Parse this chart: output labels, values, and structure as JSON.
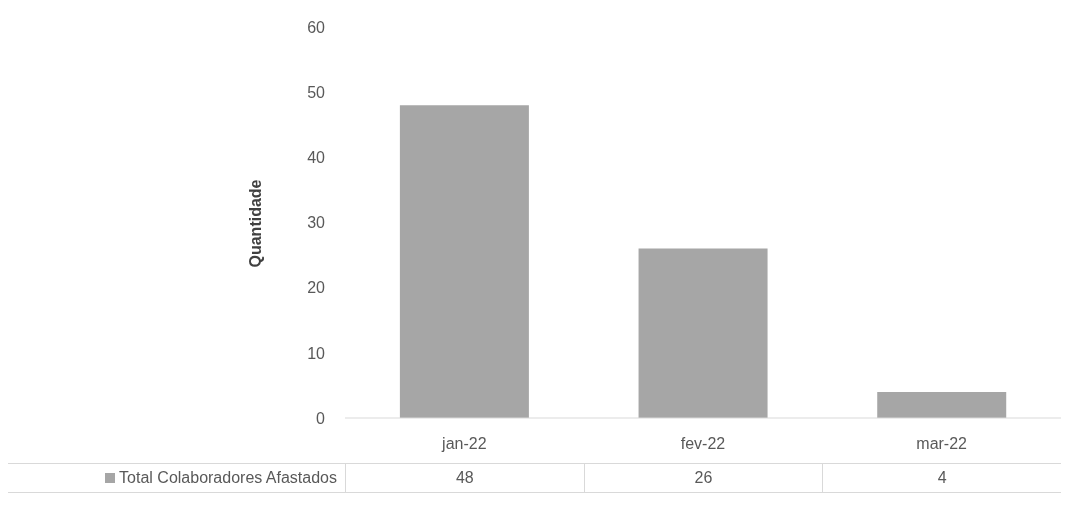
{
  "chart_data": {
    "type": "bar",
    "ylabel": "Quantidade",
    "categories": [
      "jan-22",
      "fev-22",
      "mar-22"
    ],
    "series": [
      {
        "name": "Total Colaboradores Afastados",
        "color": "#a6a6a6",
        "values": [
          48,
          26,
          4
        ]
      }
    ],
    "ylim": [
      0,
      60
    ],
    "yticks": [
      0,
      10,
      20,
      30,
      40,
      50,
      60
    ],
    "data_labels": true,
    "legend": "bottom",
    "grid": false
  }
}
